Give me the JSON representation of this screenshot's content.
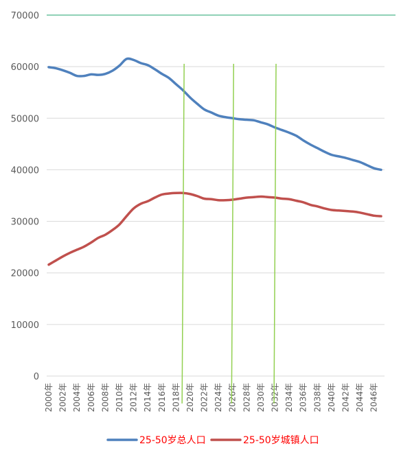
{
  "chart_data": {
    "type": "line",
    "title": "",
    "xlabel": "",
    "ylabel": "",
    "ylim": [
      0,
      70000
    ],
    "yticks": [
      0,
      10000,
      20000,
      30000,
      40000,
      50000,
      60000,
      70000
    ],
    "ytick_labels": [
      "0",
      "10000",
      "20000",
      "30000",
      "40000",
      "50000",
      "60000",
      "70000"
    ],
    "x": [
      2000,
      2001,
      2002,
      2003,
      2004,
      2005,
      2006,
      2007,
      2008,
      2009,
      2010,
      2011,
      2012,
      2013,
      2014,
      2015,
      2016,
      2017,
      2018,
      2019,
      2020,
      2021,
      2022,
      2023,
      2024,
      2025,
      2026,
      2027,
      2028,
      2029,
      2030,
      2031,
      2032,
      2033,
      2034,
      2035,
      2036,
      2037,
      2038,
      2039,
      2040,
      2041,
      2042,
      2043,
      2044,
      2045,
      2046,
      2047
    ],
    "xtick_labels": [
      "2000年",
      "2002年",
      "2004年",
      "2006年",
      "2008年",
      "2010年",
      "2012年",
      "2014年",
      "2016年",
      "2018年",
      "2020年",
      "2022年",
      "2024年",
      "2026年",
      "2028年",
      "2030年",
      "2032年",
      "2034年",
      "2036年",
      "2038年",
      "2040年",
      "2042年",
      "2044年",
      "2046年"
    ],
    "grid": true,
    "legend_position": "bottom",
    "series": [
      {
        "name": "25-50岁总人口",
        "color": "#4f81bd",
        "values": [
          59900,
          59700,
          59300,
          58800,
          58200,
          58200,
          58500,
          58400,
          58600,
          59200,
          60200,
          61500,
          61300,
          60700,
          60300,
          59500,
          58600,
          57800,
          56600,
          55400,
          54000,
          52800,
          51700,
          51100,
          50500,
          50200,
          50000,
          49800,
          49700,
          49600,
          49200,
          48800,
          48200,
          47700,
          47200,
          46600,
          45700,
          44900,
          44200,
          43500,
          42900,
          42600,
          42300,
          41900,
          41500,
          40900,
          40300,
          40000
        ]
      },
      {
        "name": "25-50岁城镇人口",
        "color": "#c0504d",
        "values": [
          21600,
          22400,
          23200,
          23900,
          24500,
          25100,
          25900,
          26800,
          27400,
          28300,
          29400,
          31000,
          32500,
          33400,
          33900,
          34600,
          35200,
          35400,
          35500,
          35500,
          35300,
          34900,
          34400,
          34300,
          34100,
          34100,
          34200,
          34400,
          34600,
          34700,
          34800,
          34700,
          34600,
          34400,
          34300,
          34000,
          33700,
          33200,
          32900,
          32500,
          32200,
          32100,
          32000,
          31900,
          31700,
          31400,
          31100,
          31000
        ]
      }
    ],
    "reference_lines": [
      {
        "x": 2019,
        "color": "#92d050"
      },
      {
        "x": 2026,
        "color": "#92d050"
      },
      {
        "x": 2032,
        "color": "#92d050"
      }
    ],
    "top_line_color": "#1fa36e",
    "grid_color": "#d9d9d9"
  }
}
